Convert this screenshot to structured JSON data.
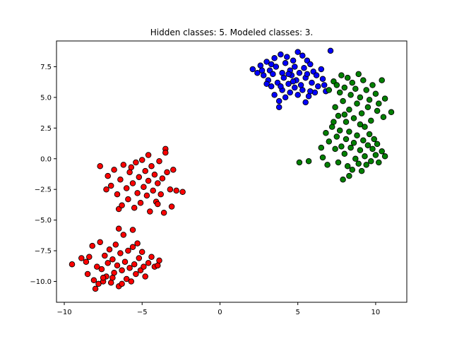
{
  "chart_data": {
    "type": "scatter",
    "title": "Hidden classes: 5. Modeled classes: 3.",
    "xlabel": "",
    "ylabel": "",
    "xlim": [
      -10.5,
      12.0
    ],
    "ylim": [
      -11.7,
      9.6
    ],
    "xticks": [
      -10,
      -5,
      0,
      5,
      10
    ],
    "xtick_labels": [
      "−10",
      "−5",
      "0",
      "5",
      "10"
    ],
    "yticks": [
      -10.0,
      -7.5,
      -5.0,
      -2.5,
      0.0,
      2.5,
      5.0,
      7.5
    ],
    "ytick_labels": [
      "−10.0",
      "−7.5",
      "−5.0",
      "−2.5",
      "0.0",
      "2.5",
      "5.0",
      "7.5"
    ],
    "grid": false,
    "legend": "none",
    "colors": {
      "class_blue": "#0000ff",
      "class_green": "#008000",
      "class_red": "#ff0000",
      "edge": "#000000"
    },
    "series": [
      {
        "color": "#0000ff",
        "points": [
          [
            2.1,
            7.3
          ],
          [
            2.4,
            7.0
          ],
          [
            2.6,
            7.6
          ],
          [
            2.8,
            6.8
          ],
          [
            3.0,
            7.9
          ],
          [
            3.1,
            6.4
          ],
          [
            3.2,
            7.2
          ],
          [
            3.3,
            5.9
          ],
          [
            3.4,
            6.9
          ],
          [
            3.5,
            8.2
          ],
          [
            3.5,
            5.2
          ],
          [
            3.6,
            7.5
          ],
          [
            3.7,
            6.2
          ],
          [
            3.8,
            4.7
          ],
          [
            3.8,
            4.2
          ],
          [
            3.9,
            8.5
          ],
          [
            4.0,
            7.0
          ],
          [
            4.0,
            5.6
          ],
          [
            4.1,
            6.6
          ],
          [
            4.2,
            7.8
          ],
          [
            4.2,
            5.0
          ],
          [
            4.3,
            8.3
          ],
          [
            4.4,
            6.1
          ],
          [
            4.5,
            7.2
          ],
          [
            4.5,
            5.4
          ],
          [
            4.6,
            6.8
          ],
          [
            4.7,
            8.0
          ],
          [
            4.8,
            5.8
          ],
          [
            4.8,
            7.5
          ],
          [
            4.9,
            6.4
          ],
          [
            5.0,
            8.7
          ],
          [
            5.0,
            5.2
          ],
          [
            5.1,
            7.0
          ],
          [
            5.2,
            6.0
          ],
          [
            5.3,
            8.4
          ],
          [
            5.3,
            5.6
          ],
          [
            5.4,
            7.4
          ],
          [
            5.5,
            4.6
          ],
          [
            5.5,
            6.6
          ],
          [
            5.6,
            8.0
          ],
          [
            5.7,
            5.1
          ],
          [
            5.8,
            7.7
          ],
          [
            5.9,
            6.2
          ],
          [
            6.0,
            7.1
          ],
          [
            6.1,
            5.4
          ],
          [
            6.2,
            6.8
          ],
          [
            6.3,
            5.9
          ],
          [
            6.5,
            7.3
          ],
          [
            6.6,
            6.5
          ],
          [
            6.8,
            5.5
          ],
          [
            7.1,
            8.8
          ],
          [
            3.0,
            6.1
          ],
          [
            2.7,
            7.2
          ],
          [
            3.3,
            7.7
          ],
          [
            4.4,
            6.9
          ],
          [
            5.6,
            6.9
          ],
          [
            3.9,
            5.9
          ],
          [
            4.7,
            6.3
          ],
          [
            6.7,
            6.0
          ],
          [
            5.8,
            5.5
          ]
        ]
      },
      {
        "color": "#008000",
        "points": [
          [
            7.0,
            5.6
          ],
          [
            7.3,
            6.3
          ],
          [
            7.5,
            6.0
          ],
          [
            7.7,
            5.4
          ],
          [
            7.8,
            6.8
          ],
          [
            8.0,
            5.8
          ],
          [
            8.2,
            6.6
          ],
          [
            8.4,
            5.2
          ],
          [
            8.5,
            6.2
          ],
          [
            8.7,
            5.7
          ],
          [
            8.9,
            6.9
          ],
          [
            9.0,
            5.0
          ],
          [
            9.2,
            6.4
          ],
          [
            9.4,
            5.6
          ],
          [
            9.6,
            4.8
          ],
          [
            9.8,
            6.0
          ],
          [
            10.0,
            5.3
          ],
          [
            10.2,
            4.5
          ],
          [
            10.4,
            6.4
          ],
          [
            10.6,
            4.9
          ],
          [
            7.4,
            4.2
          ],
          [
            7.6,
            3.5
          ],
          [
            7.9,
            4.7
          ],
          [
            8.1,
            3.0
          ],
          [
            8.3,
            4.0
          ],
          [
            8.6,
            3.3
          ],
          [
            8.8,
            4.5
          ],
          [
            9.1,
            3.7
          ],
          [
            9.3,
            2.6
          ],
          [
            9.5,
            4.2
          ],
          [
            9.7,
            3.1
          ],
          [
            10.1,
            3.9
          ],
          [
            10.5,
            3.4
          ],
          [
            11.0,
            3.8
          ],
          [
            6.8,
            2.1
          ],
          [
            7.0,
            1.4
          ],
          [
            7.2,
            2.6
          ],
          [
            7.4,
            0.8
          ],
          [
            7.5,
            1.8
          ],
          [
            7.6,
            -0.3
          ],
          [
            7.7,
            2.3
          ],
          [
            7.8,
            1.0
          ],
          [
            7.9,
            -1.7
          ],
          [
            8.0,
            0.4
          ],
          [
            8.1,
            1.6
          ],
          [
            8.2,
            -0.6
          ],
          [
            8.3,
            2.2
          ],
          [
            8.4,
            0.9
          ],
          [
            8.5,
            -0.9
          ],
          [
            8.6,
            1.3
          ],
          [
            8.7,
            0.0
          ],
          [
            8.8,
            1.9
          ],
          [
            8.9,
            -0.4
          ],
          [
            9.0,
            0.7
          ],
          [
            9.1,
            -1.0
          ],
          [
            9.2,
            1.5
          ],
          [
            9.3,
            0.2
          ],
          [
            9.4,
            -0.5
          ],
          [
            9.5,
            1.1
          ],
          [
            9.6,
            2.0
          ],
          [
            9.7,
            -0.2
          ],
          [
            9.8,
            0.8
          ],
          [
            9.9,
            1.6
          ],
          [
            10.0,
            0.3
          ],
          [
            10.1,
            1.2
          ],
          [
            10.2,
            -0.3
          ],
          [
            10.4,
            0.6
          ],
          [
            10.6,
            0.2
          ],
          [
            6.5,
            0.9
          ],
          [
            6.6,
            0.1
          ],
          [
            6.9,
            -0.5
          ],
          [
            5.1,
            -0.3
          ],
          [
            5.7,
            -0.2
          ],
          [
            8.3,
            -1.4
          ],
          [
            9.0,
            2.8
          ],
          [
            8.0,
            3.6
          ],
          [
            7.3,
            3.0
          ]
        ]
      },
      {
        "color": "#ff0000",
        "points": [
          [
            -7.7,
            -0.6
          ],
          [
            -7.2,
            -1.4
          ],
          [
            -7.0,
            -2.2
          ],
          [
            -6.8,
            -0.9
          ],
          [
            -6.6,
            -2.9
          ],
          [
            -6.4,
            -1.7
          ],
          [
            -6.2,
            -0.5
          ],
          [
            -6.0,
            -2.4
          ],
          [
            -5.9,
            -3.3
          ],
          [
            -5.8,
            -1.1
          ],
          [
            -5.6,
            -2.0
          ],
          [
            -5.5,
            -4.0
          ],
          [
            -5.4,
            -0.3
          ],
          [
            -5.3,
            -2.8
          ],
          [
            -5.2,
            -1.5
          ],
          [
            -5.1,
            -3.6
          ],
          [
            -5.0,
            -0.1
          ],
          [
            -4.9,
            -2.3
          ],
          [
            -4.8,
            -1.0
          ],
          [
            -4.7,
            -3.0
          ],
          [
            -4.6,
            -1.8
          ],
          [
            -4.5,
            -4.3
          ],
          [
            -4.4,
            -0.6
          ],
          [
            -4.3,
            -2.6
          ],
          [
            -4.2,
            -1.3
          ],
          [
            -4.1,
            -3.5
          ],
          [
            -4.0,
            -2.0
          ],
          [
            -3.9,
            -0.2
          ],
          [
            -3.8,
            -2.9
          ],
          [
            -3.7,
            -1.6
          ],
          [
            -3.6,
            -4.4
          ],
          [
            -3.5,
            0.8
          ],
          [
            -3.4,
            -1.1
          ],
          [
            -3.2,
            -2.5
          ],
          [
            -3.0,
            -0.9
          ],
          [
            -2.8,
            -2.6
          ],
          [
            -2.4,
            -2.7
          ],
          [
            -3.1,
            -3.9
          ],
          [
            -6.5,
            -4.1
          ],
          [
            -7.3,
            -2.5
          ],
          [
            -6.3,
            -3.8
          ],
          [
            -5.7,
            -0.7
          ],
          [
            -4.6,
            0.3
          ],
          [
            -4.0,
            -3.7
          ],
          [
            -3.5,
            0.5
          ],
          [
            -9.5,
            -8.6
          ],
          [
            -8.6,
            -8.4
          ],
          [
            -8.5,
            -9.4
          ],
          [
            -8.4,
            -8.0
          ],
          [
            -8.2,
            -7.1
          ],
          [
            -8.1,
            -9.9
          ],
          [
            -8.0,
            -10.6
          ],
          [
            -7.9,
            -8.8
          ],
          [
            -7.8,
            -10.2
          ],
          [
            -7.7,
            -6.8
          ],
          [
            -7.6,
            -9.0
          ],
          [
            -7.5,
            -10.0
          ],
          [
            -7.4,
            -7.9
          ],
          [
            -7.3,
            -9.6
          ],
          [
            -7.2,
            -8.5
          ],
          [
            -7.1,
            -7.4
          ],
          [
            -7.0,
            -10.1
          ],
          [
            -6.9,
            -8.2
          ],
          [
            -6.8,
            -9.3
          ],
          [
            -6.7,
            -7.0
          ],
          [
            -6.6,
            -8.7
          ],
          [
            -6.5,
            -10.4
          ],
          [
            -6.4,
            -7.7
          ],
          [
            -6.3,
            -9.1
          ],
          [
            -6.2,
            -6.2
          ],
          [
            -6.1,
            -8.4
          ],
          [
            -6.0,
            -9.8
          ],
          [
            -5.9,
            -7.5
          ],
          [
            -5.8,
            -8.9
          ],
          [
            -5.7,
            -10.0
          ],
          [
            -5.6,
            -7.2
          ],
          [
            -5.5,
            -8.6
          ],
          [
            -5.4,
            -9.4
          ],
          [
            -5.3,
            -6.9
          ],
          [
            -5.2,
            -8.1
          ],
          [
            -5.1,
            -9.1
          ],
          [
            -5.0,
            -7.6
          ],
          [
            -4.9,
            -8.8
          ],
          [
            -4.8,
            -9.6
          ],
          [
            -4.6,
            -8.5
          ],
          [
            -4.4,
            -8.0
          ],
          [
            -4.2,
            -8.8
          ],
          [
            -4.0,
            -8.7
          ],
          [
            -3.9,
            -8.3
          ],
          [
            -6.5,
            -5.7
          ],
          [
            -5.6,
            -5.8
          ],
          [
            -8.9,
            -8.1
          ],
          [
            -7.5,
            -9.7
          ],
          [
            -6.9,
            -9.7
          ],
          [
            -6.3,
            -10.2
          ]
        ]
      }
    ]
  }
}
